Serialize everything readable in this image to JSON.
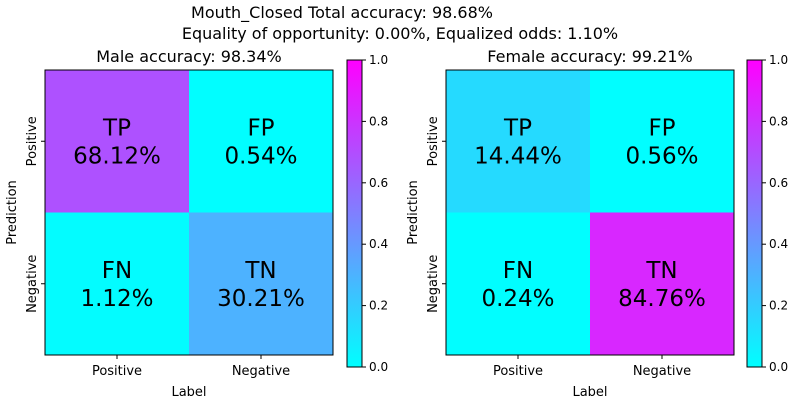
{
  "figure": {
    "title_line1": "Mouth_Closed   Total accuracy: 98.68%",
    "title_line2": "Equality of opportunity: 0.00%, Equalized odds: 1.10%"
  },
  "colormap": {
    "name": "cool",
    "low": "#00ffff",
    "high": "#ff00ff",
    "range": [
      0,
      1
    ]
  },
  "chart_data": [
    {
      "type": "heatmap",
      "title": "Male accuracy: 98.34%",
      "xlabel": "Label",
      "ylabel": "Prediction",
      "x_categories": [
        "Positive",
        "Negative"
      ],
      "y_categories": [
        "Positive",
        "Negative"
      ],
      "cells": [
        [
          {
            "tag": "TP",
            "value": 68.12,
            "label": "68.12%"
          },
          {
            "tag": "FP",
            "value": 0.54,
            "label": "0.54%"
          }
        ],
        [
          {
            "tag": "FN",
            "value": 1.12,
            "label": "1.12%"
          },
          {
            "tag": "TN",
            "value": 30.21,
            "label": "30.21%"
          }
        ]
      ],
      "colorbar": {
        "ticks": [
          "0.0",
          "0.2",
          "0.4",
          "0.6",
          "0.8",
          "1.0"
        ],
        "range": [
          0,
          1
        ]
      }
    },
    {
      "type": "heatmap",
      "title": "Female accuracy: 99.21%",
      "xlabel": "Label",
      "ylabel": "Prediction",
      "x_categories": [
        "Positive",
        "Negative"
      ],
      "y_categories": [
        "Positive",
        "Negative"
      ],
      "cells": [
        [
          {
            "tag": "TP",
            "value": 14.44,
            "label": "14.44%"
          },
          {
            "tag": "FP",
            "value": 0.56,
            "label": "0.56%"
          }
        ],
        [
          {
            "tag": "FN",
            "value": 0.24,
            "label": "0.24%"
          },
          {
            "tag": "TN",
            "value": 84.76,
            "label": "84.76%"
          }
        ]
      ],
      "colorbar": {
        "ticks": [
          "0.0",
          "0.2",
          "0.4",
          "0.6",
          "0.8",
          "1.0"
        ],
        "range": [
          0,
          1
        ]
      }
    }
  ]
}
